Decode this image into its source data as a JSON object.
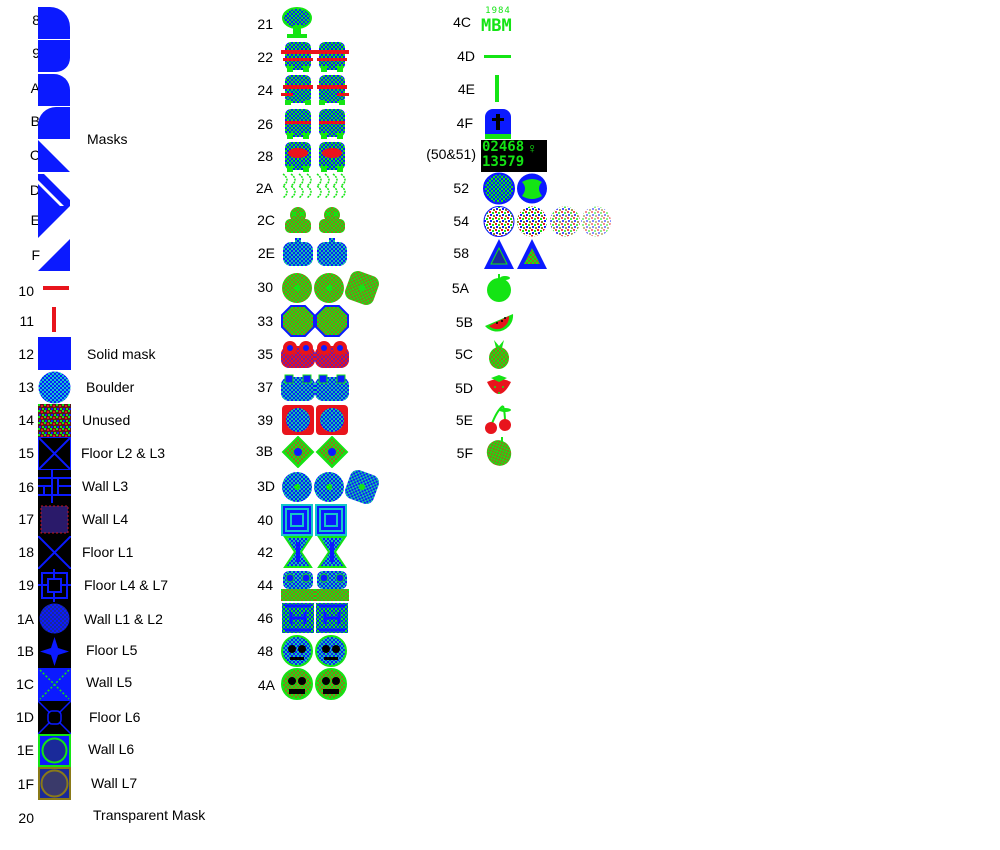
{
  "colors": {
    "mask_blue": "#0b1aff",
    "accent_red": "#e8141c",
    "sprite_green": "#14e414",
    "sprite_blue": "#0b1aff",
    "sprite_olive": "#8a7a18",
    "sprite_purple": "#7a1a9a",
    "background": "#ffffff",
    "tile_black": "#000000"
  },
  "col1": {
    "ids": [
      "8",
      "9",
      "A",
      "B",
      "C",
      "D",
      "E",
      "F",
      "10",
      "11",
      "12",
      "13",
      "14",
      "15",
      "16",
      "17",
      "18",
      "19",
      "1A",
      "1B",
      "1C",
      "1D",
      "1E",
      "1F",
      "20"
    ],
    "labels": {
      "masks": "Masks",
      "solid_mask": "Solid mask",
      "boulder": "Boulder",
      "unused": "Unused",
      "floor_l2_l3": "Floor L2 & L3",
      "wall_l3": "Wall L3",
      "wall_l4": "Wall L4",
      "floor_l1": "Floor L1",
      "floor_l4_l7": "Floor L4 & L7",
      "wall_l1_l2": "Wall L1 & L2",
      "floor_l5": "Floor L5",
      "wall_l5": "Wall L5",
      "floor_l6": "Floor L6",
      "wall_l6": "Wall L6",
      "wall_l7": "Wall L7",
      "transparent_mask": "Transparent Mask"
    }
  },
  "col2": {
    "ids": [
      "21",
      "22",
      "24",
      "26",
      "28",
      "2A",
      "2C",
      "2E",
      "30",
      "33",
      "35",
      "37",
      "39",
      "3B",
      "3D",
      "40",
      "42",
      "44",
      "46",
      "48",
      "4A"
    ]
  },
  "col3": {
    "ids": [
      "4C",
      "4D",
      "4E",
      "4F",
      "(50&51)",
      "52",
      "54",
      "58",
      "5A",
      "5B",
      "5C",
      "5D",
      "5E",
      "5F"
    ],
    "logo_year": "1984",
    "logo_text": "MBM",
    "digits_row1": "02468",
    "digits_row2": "13579"
  }
}
